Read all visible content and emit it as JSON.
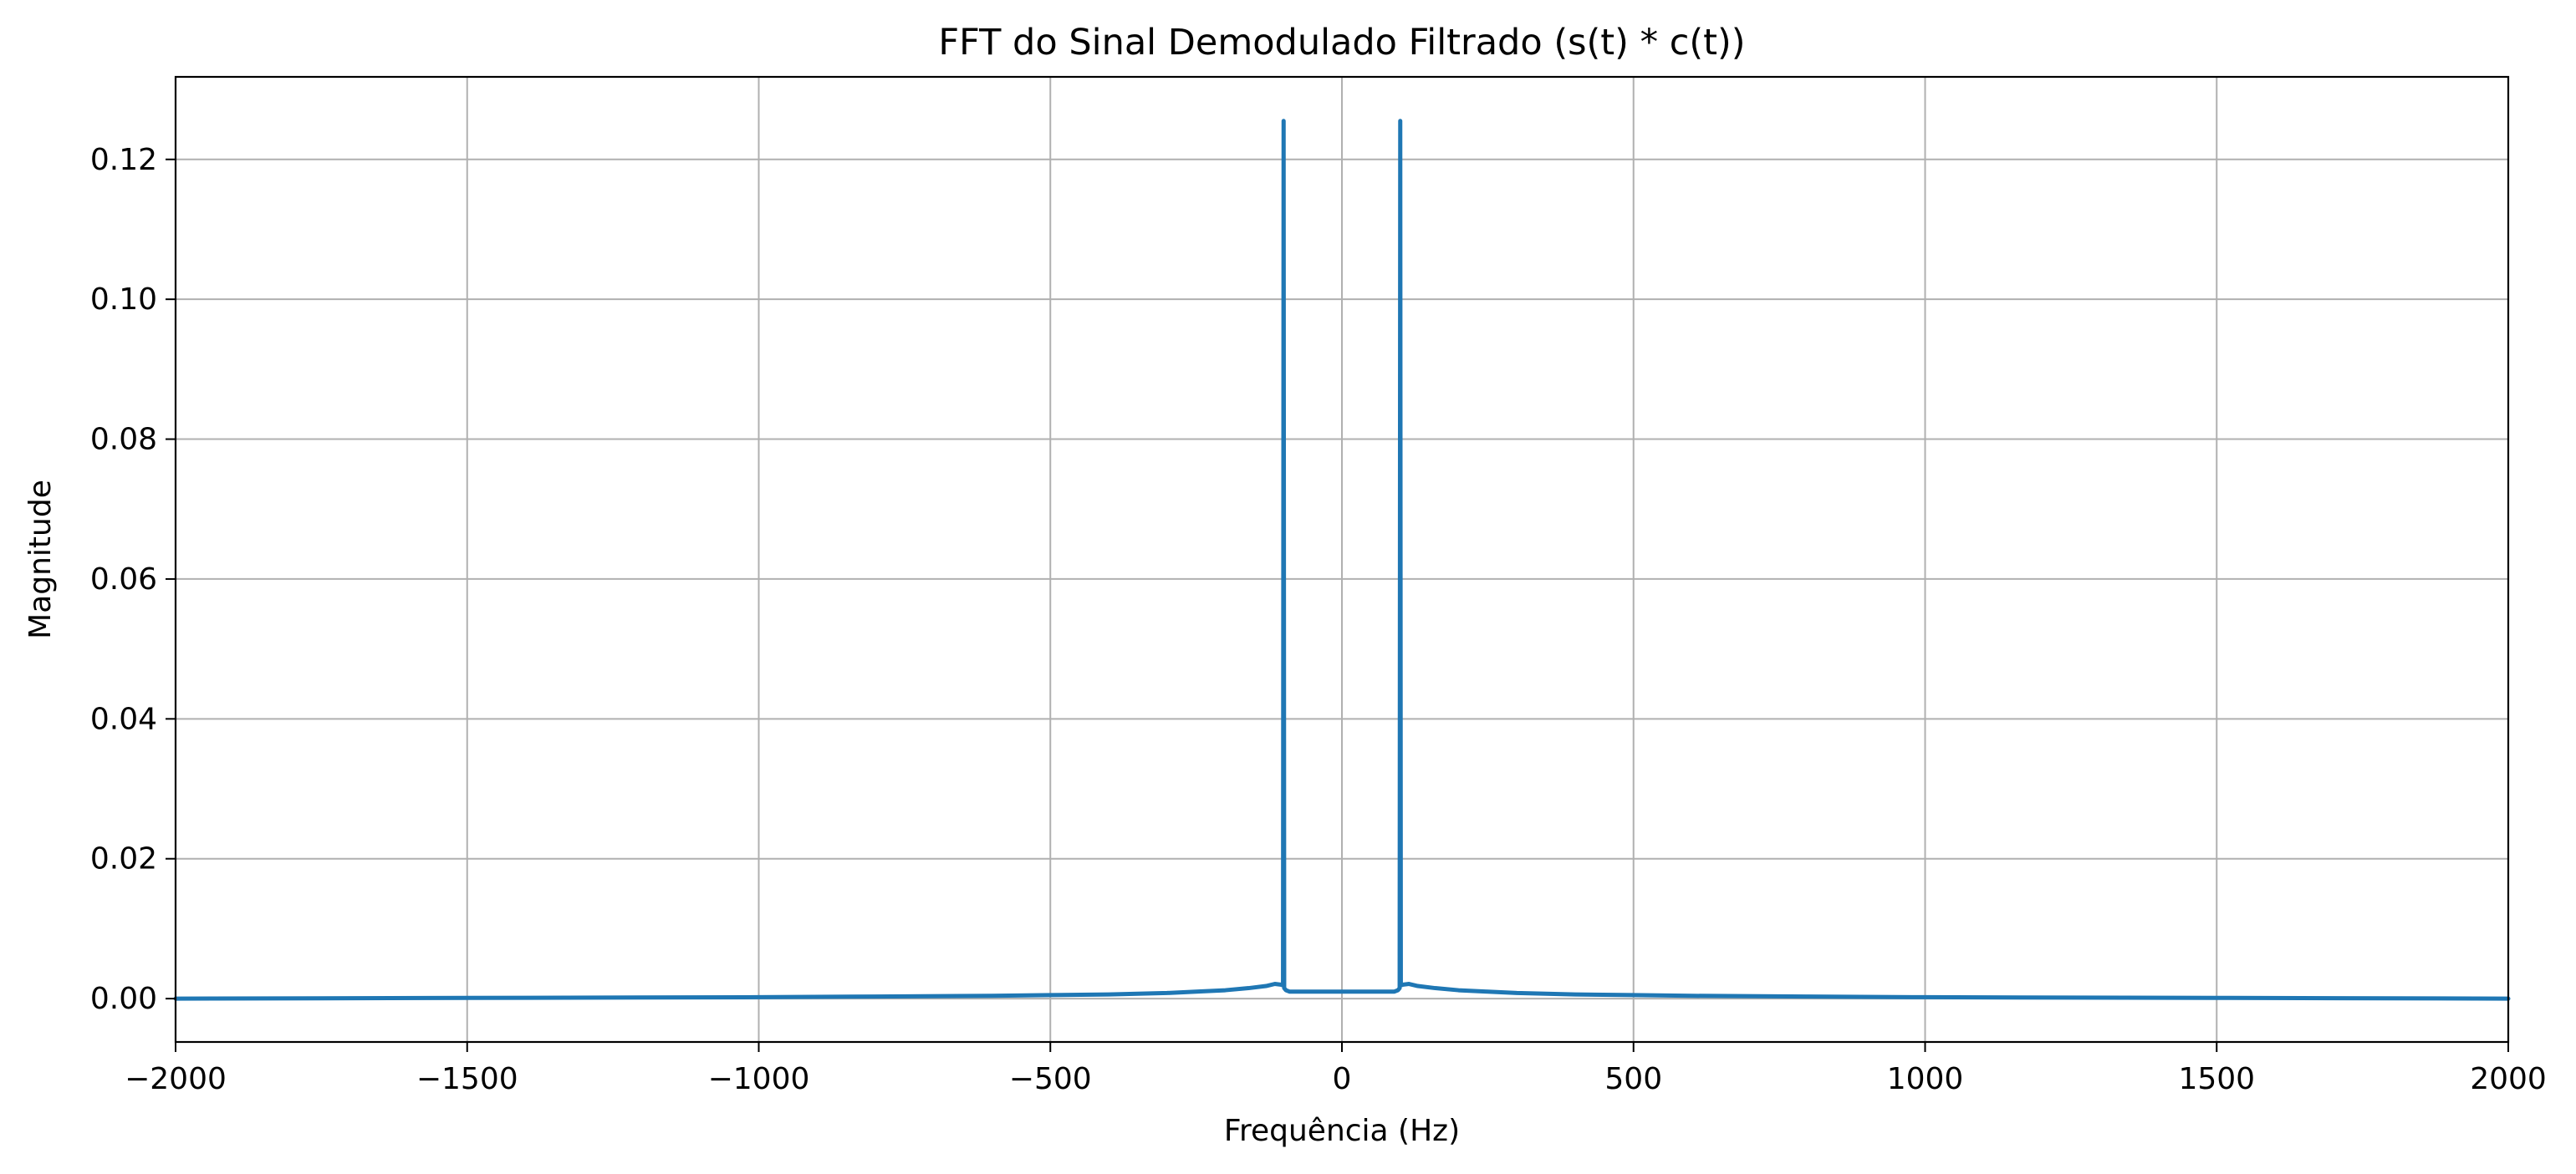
{
  "chart_data": {
    "type": "line",
    "title": "FFT do Sinal Demodulado Filtrado (s(t) * c(t))",
    "xlabel": "Frequência (Hz)",
    "ylabel": "Magnitude",
    "xlim": [
      -2000,
      2000
    ],
    "ylim": [
      -0.0062,
      0.1318
    ],
    "xticks": [
      -2000,
      -1500,
      -1000,
      -500,
      0,
      500,
      1000,
      1500,
      2000
    ],
    "xtick_labels": [
      "−2000",
      "−1500",
      "−1000",
      "−500",
      "0",
      "500",
      "1000",
      "1500",
      "2000"
    ],
    "yticks": [
      0.0,
      0.02,
      0.04,
      0.06,
      0.08,
      0.1,
      0.12
    ],
    "ytick_labels": [
      "0.00",
      "0.02",
      "0.04",
      "0.06",
      "0.08",
      "0.10",
      "0.12"
    ],
    "grid": true,
    "legend": "none",
    "line_color": "#1f77b4",
    "series": [
      {
        "x": [
          -2000,
          -1500,
          -1000,
          -800,
          -600,
          -500,
          -400,
          -300,
          -250,
          -200,
          -160,
          -130,
          -115,
          -105,
          -101,
          -100,
          -99,
          -96,
          -90,
          -80,
          -60,
          -30,
          0,
          30,
          60,
          80,
          90,
          96,
          99,
          100,
          101,
          105,
          115,
          130,
          160,
          200,
          250,
          300,
          400,
          500,
          600,
          800,
          1000,
          1500,
          2000
        ],
        "y": [
          0.0,
          0.0001,
          0.0002,
          0.0003,
          0.0004,
          0.0005,
          0.0006,
          0.0008,
          0.001,
          0.0012,
          0.0015,
          0.0018,
          0.0021,
          0.002,
          0.0019,
          0.1255,
          0.0015,
          0.0012,
          0.001,
          0.001,
          0.001,
          0.001,
          0.001,
          0.001,
          0.001,
          0.001,
          0.001,
          0.0012,
          0.0015,
          0.1255,
          0.0019,
          0.002,
          0.0021,
          0.0018,
          0.0015,
          0.0012,
          0.001,
          0.0008,
          0.0006,
          0.0005,
          0.0004,
          0.0003,
          0.0002,
          0.0001,
          0.0
        ]
      }
    ]
  }
}
